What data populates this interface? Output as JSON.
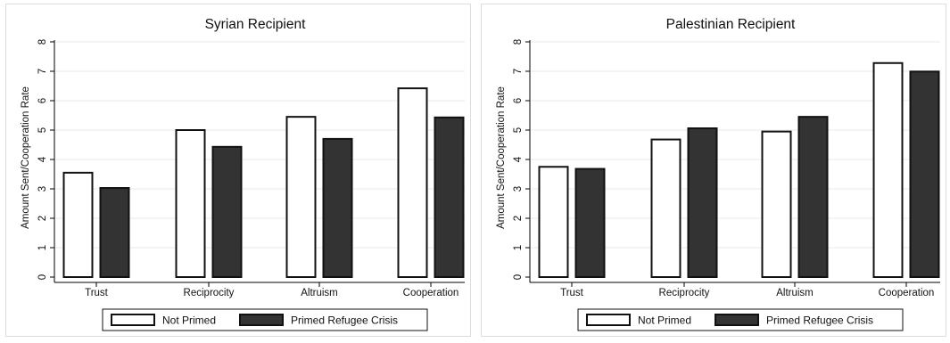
{
  "chart_data": [
    {
      "type": "bar",
      "title": "Syrian Recipient",
      "ylabel": "Amount Sent/Cooperation Rate",
      "xlabel": "",
      "categories": [
        "Trust",
        "Reciprocity",
        "Altruism",
        "Cooperation"
      ],
      "ylim": [
        0,
        8
      ],
      "yticks": [
        "0",
        "1",
        "2",
        "3",
        "4",
        "5",
        "6",
        "7",
        "8"
      ],
      "grid": true,
      "legend_position": "bottom",
      "series": [
        {
          "name": "Not Primed",
          "values": [
            3.55,
            5.0,
            5.45,
            6.42
          ],
          "color": "#ffffff"
        },
        {
          "name": "Primed Refugee Crisis",
          "values": [
            3.03,
            4.43,
            4.7,
            5.43
          ],
          "color": "#333333"
        }
      ]
    },
    {
      "type": "bar",
      "title": "Palestinian Recipient",
      "ylabel": "Amount Sent/Cooperation Rate",
      "xlabel": "",
      "categories": [
        "Trust",
        "Reciprocity",
        "Altruism",
        "Cooperation"
      ],
      "ylim": [
        0,
        8
      ],
      "yticks": [
        "0",
        "1",
        "2",
        "3",
        "4",
        "5",
        "6",
        "7",
        "8"
      ],
      "grid": true,
      "legend_position": "bottom",
      "series": [
        {
          "name": "Not Primed",
          "values": [
            3.75,
            4.68,
            4.95,
            7.28
          ],
          "color": "#ffffff"
        },
        {
          "name": "Primed Refugee Crisis",
          "values": [
            3.68,
            5.06,
            5.45,
            6.99
          ],
          "color": "#333333"
        }
      ]
    }
  ]
}
